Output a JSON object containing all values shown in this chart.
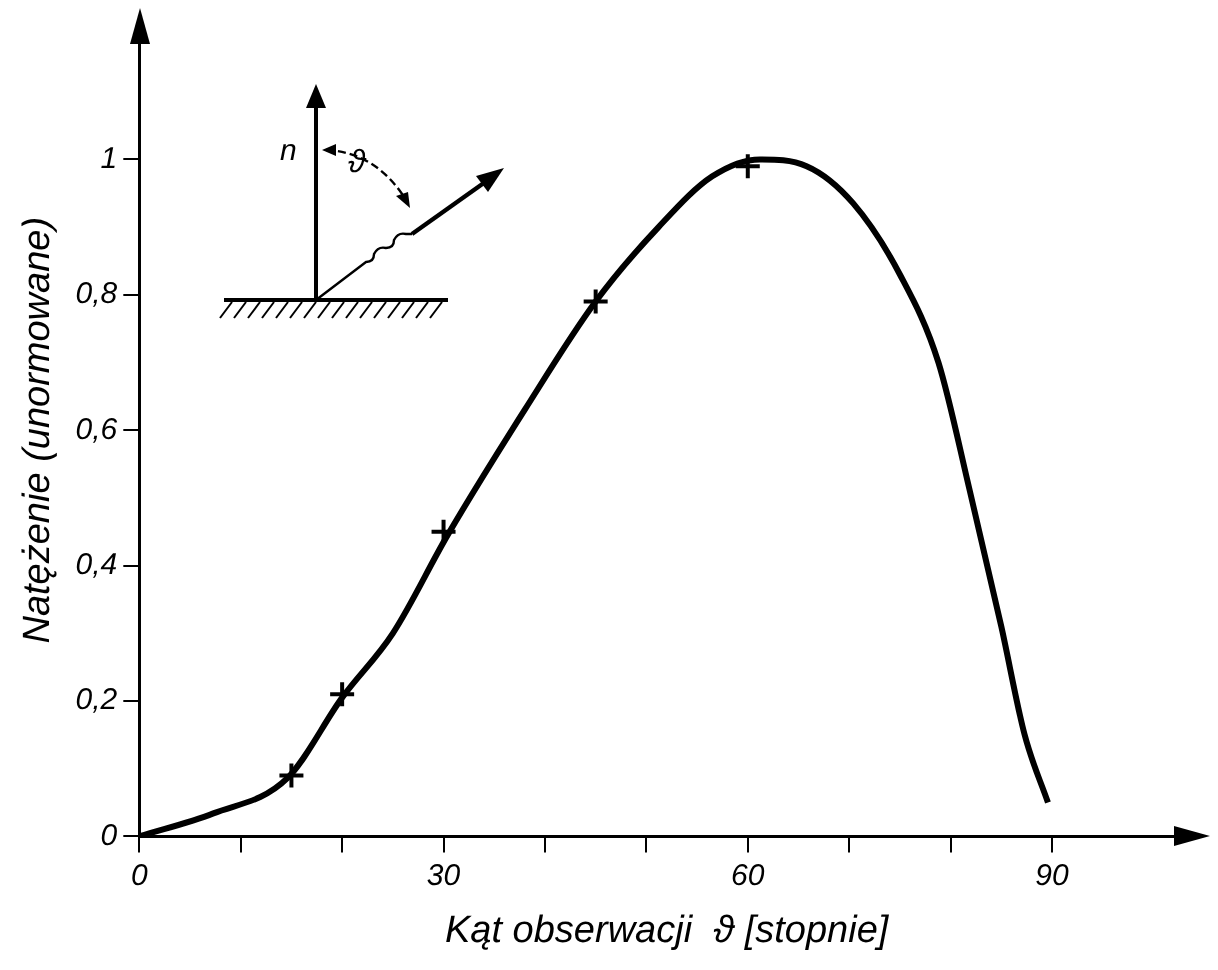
{
  "chart_data": {
    "type": "line",
    "xlabel": "Kąt obserwacji  ϑ [stopnie]",
    "ylabel": "Natężenie (unormowane)",
    "xlim": [
      0,
      104
    ],
    "ylim": [
      0,
      1.2
    ],
    "xticks": [
      0,
      {
        "value": 10,
        "label": null
      },
      {
        "value": 20,
        "label": null
      },
      30,
      {
        "value": 40,
        "label": null
      },
      {
        "value": 50,
        "label": null
      },
      60,
      {
        "value": 70,
        "label": null
      },
      {
        "value": 80,
        "label": null
      },
      90
    ],
    "yticks": [
      0,
      {
        "value": 0.2,
        "label": "0,2"
      },
      {
        "value": 0.4,
        "label": "0,4"
      },
      {
        "value": 0.6,
        "label": "0,6"
      },
      {
        "value": 0.8,
        "label": "0,8"
      },
      1
    ],
    "grid": false,
    "legend": false,
    "annotations": [
      "n",
      "ϑ"
    ],
    "series": [
      {
        "type": "line",
        "color": "#000000",
        "marker": "none",
        "x": [
          0,
          7.3,
          14.6,
          20,
          25,
          30.4,
          38,
          45,
          51.2,
          56.5,
          61.2,
          65.8,
          70.4,
          75,
          78.8,
          81.9,
          85,
          87.3,
          89.6
        ],
        "values": [
          0,
          0.034,
          0.086,
          0.205,
          0.3,
          0.445,
          0.63,
          0.79,
          0.9,
          0.975,
          1.0,
          0.99,
          0.935,
          0.83,
          0.7,
          0.51,
          0.31,
          0.15,
          0.05
        ]
      },
      {
        "type": "scatter",
        "color": "#000000",
        "marker": "cross",
        "x": [
          15,
          20,
          30,
          45,
          60
        ],
        "values": [
          0.09,
          0.21,
          0.45,
          0.79,
          0.99
        ]
      }
    ]
  }
}
